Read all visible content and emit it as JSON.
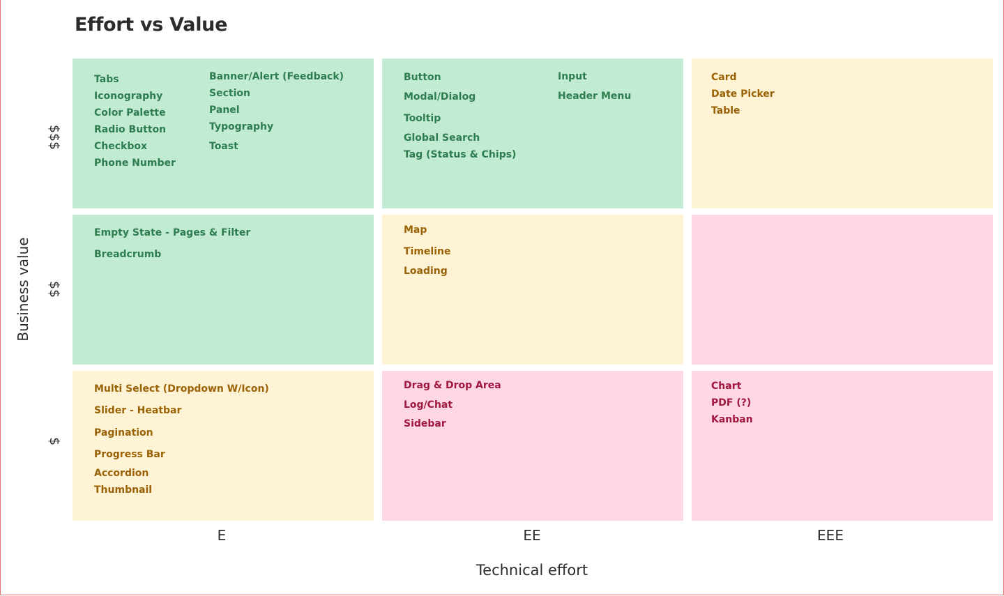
{
  "title": "Effort vs Value",
  "axes": {
    "y_label": "Business value",
    "x_label": "Technical effort",
    "rows": [
      "$$$",
      "$$",
      "$"
    ],
    "columns": [
      "E",
      "EE",
      "EEE"
    ]
  },
  "colors": {
    "green_cell": "#c2ebd4",
    "green_text": "#2e7d4f",
    "yellow_cell": "#fff3d6",
    "yellow_text": "#9a6205",
    "pink_cell": "#fdd7e3",
    "pink_text": "#a0173f"
  },
  "cells": {
    "r1c1": {
      "items": [
        "Tabs",
        "Iconography",
        "Color Palette",
        "Radio Button",
        "Checkbox",
        "Phone Number",
        "Banner/Alert (Feedback)",
        "Section",
        "Panel",
        "Typography",
        "Toast"
      ]
    },
    "r1c2": {
      "items": [
        "Button",
        "Modal/Dialog",
        "Tooltip",
        "Global Search",
        "Tag (Status & Chips)",
        "Input",
        "Header Menu"
      ]
    },
    "r1c3": {
      "items": [
        "Card",
        "Date Picker",
        "Table"
      ]
    },
    "r2c1": {
      "items": [
        "Empty State - Pages & Filter",
        "Breadcrumb"
      ]
    },
    "r2c2": {
      "items": [
        "Map",
        "Timeline",
        "Loading"
      ]
    },
    "r2c3": {
      "items": []
    },
    "r3c1": {
      "items": [
        "Multi Select (Dropdown W/Icon)",
        "Slider - Heatbar",
        "Pagination",
        "Progress Bar",
        "Accordion",
        "Thumbnail"
      ]
    },
    "r3c2": {
      "items": [
        "Drag & Drop Area",
        "Log/Chat",
        "Sidebar"
      ]
    },
    "r3c3": {
      "items": [
        "Chart",
        "PDF (?)",
        "Kanban"
      ]
    }
  }
}
